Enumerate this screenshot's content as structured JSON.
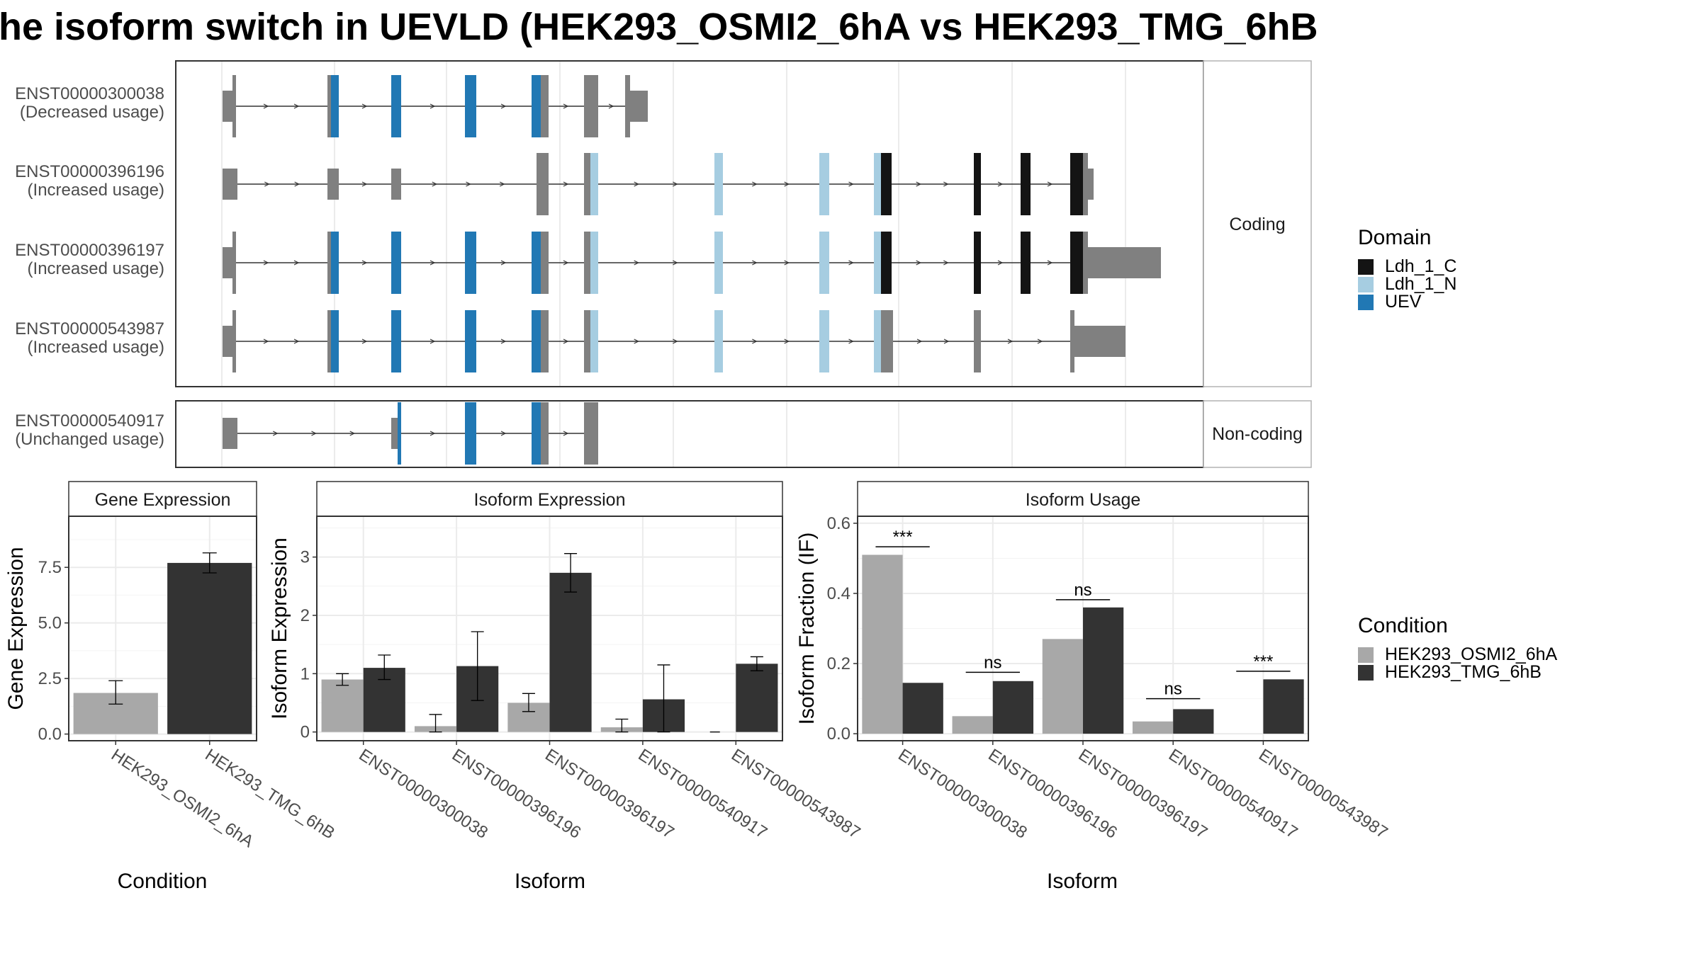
{
  "title": "he isoform switch in UEVLD (HEK293_OSMI2_6hA vs HEK293_TMG_6hB",
  "transcript_panel": {
    "groups": [
      {
        "label": "Coding",
        "transcripts": [
          {
            "id": "ENST00000300038",
            "usage": "(Decreased usage)"
          },
          {
            "id": "ENST00000396196",
            "usage": "(Increased usage)"
          },
          {
            "id": "ENST00000396197",
            "usage": "(Increased usage)"
          },
          {
            "id": "ENST00000543987",
            "usage": "(Increased usage)"
          }
        ]
      },
      {
        "label": "Non-coding",
        "transcripts": [
          {
            "id": "ENST00000540917",
            "usage": "(Unchanged usage)"
          }
        ]
      }
    ]
  },
  "domain_legend": {
    "title": "Domain",
    "items": [
      {
        "name": "Ldh_1_C",
        "color": "#141414"
      },
      {
        "name": "Ldh_1_N",
        "color": "#a6cde1"
      },
      {
        "name": "UEV",
        "color": "#2178b4"
      }
    ]
  },
  "condition_legend": {
    "title": "Condition",
    "items": [
      {
        "name": "HEK293_OSMI2_6hA",
        "color": "#a8a8a8"
      },
      {
        "name": "HEK293_TMG_6hB",
        "color": "#333333"
      }
    ]
  },
  "colors": {
    "noncds": "#808080",
    "intron": "#333333",
    "grid": "#ebebeb",
    "panel_border": "#333333",
    "strip_border": "#b3b3b3"
  },
  "chart_data": [
    {
      "type": "bar",
      "title": "Gene Expression",
      "xlabel": "Condition",
      "ylabel": "Gene Expression",
      "categories": [
        "HEK293_OSMI2_6hA",
        "HEK293_TMG_6hB"
      ],
      "values": [
        1.85,
        7.7
      ],
      "errors": [
        [
          1.35,
          2.4
        ],
        [
          7.25,
          8.15
        ]
      ],
      "yticks": [
        "0.0",
        "2.5",
        "5.0",
        "7.5"
      ],
      "ylim": [
        -0.3,
        9.8
      ]
    },
    {
      "type": "bar",
      "title": "Isoform Expression",
      "xlabel": "Isoform",
      "ylabel": "Isoform Expression",
      "categories": [
        "ENST00000300038",
        "ENST00000396196",
        "ENST00000396197",
        "ENST00000540917",
        "ENST00000543987"
      ],
      "series": [
        {
          "name": "HEK293_OSMI2_6hA",
          "values": [
            0.9,
            0.1,
            0.5,
            0.08,
            0.0
          ],
          "errors": [
            [
              0.8,
              1.0
            ],
            [
              0.0,
              0.3
            ],
            [
              0.35,
              0.66
            ],
            [
              0.0,
              0.22
            ],
            [
              0.0,
              0.0
            ]
          ]
        },
        {
          "name": "HEK293_TMG_6hB",
          "values": [
            1.1,
            1.13,
            2.73,
            0.56,
            1.17
          ],
          "errors": [
            [
              0.9,
              1.32
            ],
            [
              0.54,
              1.72
            ],
            [
              2.4,
              3.06
            ],
            [
              0.0,
              1.15
            ],
            [
              1.05,
              1.29
            ]
          ]
        }
      ],
      "yticks": [
        "0",
        "1",
        "2",
        "3"
      ],
      "ylim": [
        -0.15,
        3.7
      ]
    },
    {
      "type": "bar",
      "title": "Isoform Usage",
      "xlabel": "Isoform",
      "ylabel": "Isoform Fraction (IF)",
      "categories": [
        "ENST00000300038",
        "ENST00000396196",
        "ENST00000396197",
        "ENST00000540917",
        "ENST00000543987"
      ],
      "series": [
        {
          "name": "HEK293_OSMI2_6hA",
          "values": [
            0.51,
            0.05,
            0.27,
            0.035,
            0.0
          ]
        },
        {
          "name": "HEK293_TMG_6hB",
          "values": [
            0.145,
            0.15,
            0.36,
            0.07,
            0.155
          ]
        }
      ],
      "significance": [
        {
          "category": "ENST00000300038",
          "label": "***",
          "y": 0.533
        },
        {
          "category": "ENST00000396196",
          "label": "ns",
          "y": 0.175
        },
        {
          "category": "ENST00000396197",
          "label": "ns",
          "y": 0.382
        },
        {
          "category": "ENST00000540917",
          "label": "ns",
          "y": 0.1
        },
        {
          "category": "ENST00000543987",
          "label": "***",
          "y": 0.178
        }
      ],
      "yticks": [
        "0.0",
        "0.2",
        "0.4",
        "0.6"
      ],
      "ylim": [
        -0.02,
        0.62
      ]
    }
  ]
}
